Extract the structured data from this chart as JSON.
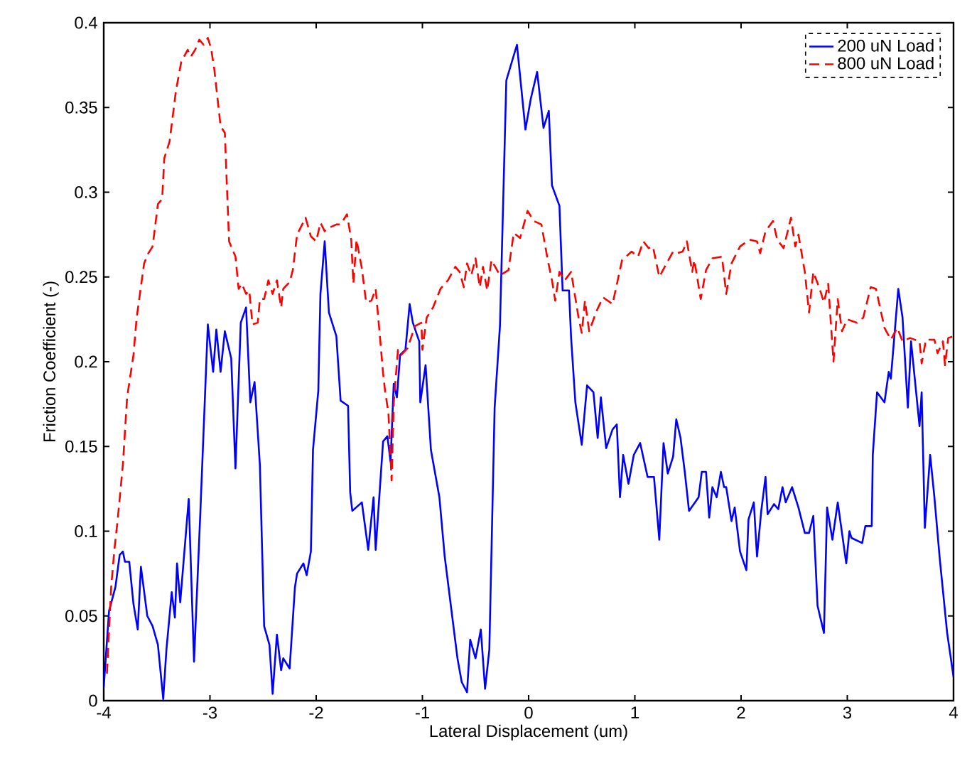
{
  "chart_data": {
    "type": "line",
    "xlabel": "Lateral Displacement (um)",
    "ylabel": "Friction Coefficient (-)",
    "xlim": [
      -4,
      4
    ],
    "ylim": [
      0,
      0.4
    ],
    "xticks": [
      -4,
      -3,
      -2,
      -1,
      0,
      1,
      2,
      3,
      4
    ],
    "yticks": [
      0,
      0.05,
      0.1,
      0.15,
      0.2,
      0.25,
      0.3,
      0.35,
      0.4
    ],
    "legend": "top right",
    "marker": "none",
    "grid": false,
    "series": [
      {
        "name": "200 uN Load",
        "color": "#0000ff",
        "line_style": "solid",
        "x": [
          -4.0,
          -3.95,
          -3.89,
          -3.85,
          -3.82,
          -3.8,
          -3.76,
          -3.72,
          -3.68,
          -3.65,
          -3.59,
          -3.54,
          -3.49,
          -3.44,
          -3.41,
          -3.36,
          -3.33,
          -3.31,
          -3.28,
          -3.2,
          -3.15,
          -3.09,
          -3.02,
          -2.97,
          -2.94,
          -2.9,
          -2.86,
          -2.8,
          -2.76,
          -2.71,
          -2.66,
          -2.62,
          -2.58,
          -2.53,
          -2.49,
          -2.44,
          -2.41,
          -2.37,
          -2.33,
          -2.31,
          -2.25,
          -2.2,
          -2.18,
          -2.12,
          -2.09,
          -2.05,
          -2.03,
          -1.98,
          -1.96,
          -1.92,
          -1.88,
          -1.81,
          -1.77,
          -1.7,
          -1.68,
          -1.66,
          -1.57,
          -1.51,
          -1.46,
          -1.44,
          -1.37,
          -1.33,
          -1.3,
          -1.27,
          -1.24,
          -1.21,
          -1.16,
          -1.12,
          -1.09,
          -1.03,
          -1.02,
          -0.97,
          -0.92,
          -0.84,
          -0.79,
          -0.72,
          -0.67,
          -0.63,
          -0.58,
          -0.55,
          -0.5,
          -0.45,
          -0.41,
          -0.37,
          -0.32,
          -0.27,
          -0.21,
          -0.11,
          -0.03,
          0.02,
          0.08,
          0.14,
          0.19,
          0.22,
          0.29,
          0.32,
          0.38,
          0.4,
          0.44,
          0.5,
          0.55,
          0.61,
          0.65,
          0.68,
          0.73,
          0.79,
          0.83,
          0.86,
          0.89,
          0.94,
          0.99,
          1.05,
          1.12,
          1.18,
          1.23,
          1.27,
          1.31,
          1.36,
          1.39,
          1.43,
          1.47,
          1.51,
          1.6,
          1.63,
          1.67,
          1.7,
          1.73,
          1.77,
          1.81,
          1.84,
          1.86,
          1.91,
          1.94,
          1.99,
          2.05,
          2.07,
          2.12,
          2.15,
          2.19,
          2.23,
          2.25,
          2.31,
          2.35,
          2.39,
          2.42,
          2.48,
          2.54,
          2.6,
          2.64,
          2.68,
          2.72,
          2.78,
          2.81,
          2.86,
          2.91,
          2.99,
          3.02,
          3.04,
          3.14,
          3.17,
          3.23,
          3.24,
          3.28,
          3.35,
          3.39,
          3.41,
          3.48,
          3.52,
          3.57,
          3.6,
          3.68,
          3.7,
          3.73,
          3.78,
          3.82,
          3.87,
          3.94,
          4.0
        ],
        "values": [
          0.008,
          0.053,
          0.067,
          0.086,
          0.088,
          0.082,
          0.082,
          0.057,
          0.042,
          0.079,
          0.05,
          0.044,
          0.033,
          0.001,
          0.03,
          0.064,
          0.049,
          0.081,
          0.058,
          0.119,
          0.023,
          0.112,
          0.222,
          0.194,
          0.219,
          0.194,
          0.218,
          0.202,
          0.137,
          0.223,
          0.232,
          0.176,
          0.188,
          0.139,
          0.044,
          0.033,
          0.004,
          0.039,
          0.018,
          0.025,
          0.019,
          0.067,
          0.075,
          0.081,
          0.074,
          0.088,
          0.148,
          0.183,
          0.24,
          0.271,
          0.229,
          0.215,
          0.177,
          0.174,
          0.123,
          0.112,
          0.117,
          0.089,
          0.12,
          0.089,
          0.153,
          0.156,
          0.141,
          0.187,
          0.179,
          0.204,
          0.207,
          0.234,
          0.223,
          0.212,
          0.176,
          0.198,
          0.148,
          0.12,
          0.085,
          0.05,
          0.025,
          0.011,
          0.005,
          0.036,
          0.025,
          0.042,
          0.007,
          0.03,
          0.173,
          0.221,
          0.366,
          0.387,
          0.337,
          0.355,
          0.371,
          0.338,
          0.348,
          0.304,
          0.292,
          0.242,
          0.242,
          0.214,
          0.176,
          0.151,
          0.186,
          0.182,
          0.155,
          0.179,
          0.149,
          0.16,
          0.163,
          0.12,
          0.145,
          0.128,
          0.145,
          0.152,
          0.132,
          0.132,
          0.095,
          0.152,
          0.134,
          0.144,
          0.166,
          0.155,
          0.135,
          0.112,
          0.12,
          0.135,
          0.135,
          0.108,
          0.126,
          0.12,
          0.135,
          0.126,
          0.126,
          0.106,
          0.114,
          0.088,
          0.077,
          0.107,
          0.117,
          0.085,
          0.112,
          0.132,
          0.11,
          0.116,
          0.113,
          0.126,
          0.117,
          0.126,
          0.114,
          0.099,
          0.099,
          0.109,
          0.056,
          0.04,
          0.114,
          0.095,
          0.117,
          0.081,
          0.1,
          0.096,
          0.093,
          0.103,
          0.103,
          0.145,
          0.182,
          0.176,
          0.194,
          0.19,
          0.243,
          0.226,
          0.173,
          0.212,
          0.162,
          0.182,
          0.102,
          0.145,
          0.12,
          0.084,
          0.04,
          0.014
        ]
      },
      {
        "name": "800 uN Load",
        "color": "#ff0000",
        "line_style": "dashed",
        "x": [
          -3.97,
          -3.93,
          -3.9,
          -3.87,
          -3.82,
          -3.78,
          -3.72,
          -3.69,
          -3.62,
          -3.58,
          -3.54,
          -3.49,
          -3.45,
          -3.43,
          -3.38,
          -3.32,
          -3.27,
          -3.21,
          -3.18,
          -3.14,
          -3.1,
          -3.06,
          -3.02,
          -2.99,
          -2.96,
          -2.9,
          -2.86,
          -2.82,
          -2.76,
          -2.73,
          -2.7,
          -2.66,
          -2.63,
          -2.6,
          -2.55,
          -2.53,
          -2.49,
          -2.45,
          -2.41,
          -2.37,
          -2.33,
          -2.31,
          -2.25,
          -2.22,
          -2.18,
          -2.1,
          -2.05,
          -2.0,
          -1.96,
          -1.92,
          -1.88,
          -1.81,
          -1.77,
          -1.71,
          -1.67,
          -1.65,
          -1.62,
          -1.57,
          -1.53,
          -1.48,
          -1.44,
          -1.4,
          -1.37,
          -1.35,
          -1.32,
          -1.29,
          -1.27,
          -1.23,
          -1.2,
          -1.14,
          -1.07,
          -1.01,
          -1.0,
          -0.96,
          -0.9,
          -0.83,
          -0.76,
          -0.69,
          -0.65,
          -0.61,
          -0.58,
          -0.54,
          -0.5,
          -0.46,
          -0.43,
          -0.39,
          -0.35,
          -0.27,
          -0.19,
          -0.14,
          -0.08,
          -0.01,
          0.05,
          0.12,
          0.18,
          0.22,
          0.25,
          0.29,
          0.34,
          0.4,
          0.47,
          0.5,
          0.53,
          0.57,
          0.64,
          0.7,
          0.79,
          0.88,
          0.97,
          1.03,
          1.08,
          1.13,
          1.17,
          1.23,
          1.29,
          1.36,
          1.4,
          1.45,
          1.49,
          1.54,
          1.56,
          1.62,
          1.67,
          1.73,
          1.82,
          1.86,
          1.91,
          1.99,
          2.08,
          2.15,
          2.18,
          2.23,
          2.3,
          2.34,
          2.4,
          2.47,
          2.51,
          2.54,
          2.6,
          2.64,
          2.68,
          2.74,
          2.78,
          2.82,
          2.87,
          2.91,
          2.95,
          3.0,
          3.09,
          3.15,
          3.22,
          3.27,
          3.35,
          3.41,
          3.47,
          3.52,
          3.59,
          3.68,
          3.7,
          3.74,
          3.82,
          3.85,
          3.9,
          3.92,
          3.95,
          4.0
        ],
        "values": [
          0.016,
          0.067,
          0.089,
          0.106,
          0.139,
          0.179,
          0.204,
          0.226,
          0.258,
          0.264,
          0.268,
          0.293,
          0.296,
          0.32,
          0.33,
          0.36,
          0.377,
          0.384,
          0.38,
          0.384,
          0.39,
          0.387,
          0.391,
          0.385,
          0.373,
          0.339,
          0.335,
          0.271,
          0.262,
          0.243,
          0.246,
          0.24,
          0.242,
          0.222,
          0.223,
          0.237,
          0.237,
          0.248,
          0.24,
          0.248,
          0.232,
          0.243,
          0.247,
          0.254,
          0.275,
          0.285,
          0.274,
          0.271,
          0.282,
          0.277,
          0.279,
          0.281,
          0.281,
          0.287,
          0.272,
          0.246,
          0.272,
          0.255,
          0.235,
          0.236,
          0.243,
          0.215,
          0.193,
          0.182,
          0.17,
          0.13,
          0.176,
          0.207,
          0.204,
          0.208,
          0.221,
          0.223,
          0.207,
          0.226,
          0.232,
          0.243,
          0.248,
          0.256,
          0.253,
          0.244,
          0.258,
          0.251,
          0.261,
          0.244,
          0.256,
          0.242,
          0.26,
          0.251,
          0.254,
          0.276,
          0.273,
          0.289,
          0.283,
          0.281,
          0.26,
          0.248,
          0.236,
          0.253,
          0.248,
          0.253,
          0.226,
          0.217,
          0.236,
          0.218,
          0.23,
          0.238,
          0.234,
          0.26,
          0.265,
          0.262,
          0.271,
          0.267,
          0.268,
          0.25,
          0.257,
          0.265,
          0.264,
          0.265,
          0.271,
          0.253,
          0.26,
          0.237,
          0.254,
          0.261,
          0.262,
          0.24,
          0.258,
          0.268,
          0.272,
          0.271,
          0.264,
          0.277,
          0.283,
          0.272,
          0.267,
          0.285,
          0.268,
          0.275,
          0.253,
          0.229,
          0.253,
          0.243,
          0.235,
          0.246,
          0.2,
          0.237,
          0.218,
          0.225,
          0.223,
          0.226,
          0.244,
          0.243,
          0.22,
          0.213,
          0.22,
          0.212,
          0.214,
          0.212,
          0.199,
          0.213,
          0.213,
          0.205,
          0.212,
          0.198,
          0.214,
          0.215
        ]
      }
    ]
  }
}
